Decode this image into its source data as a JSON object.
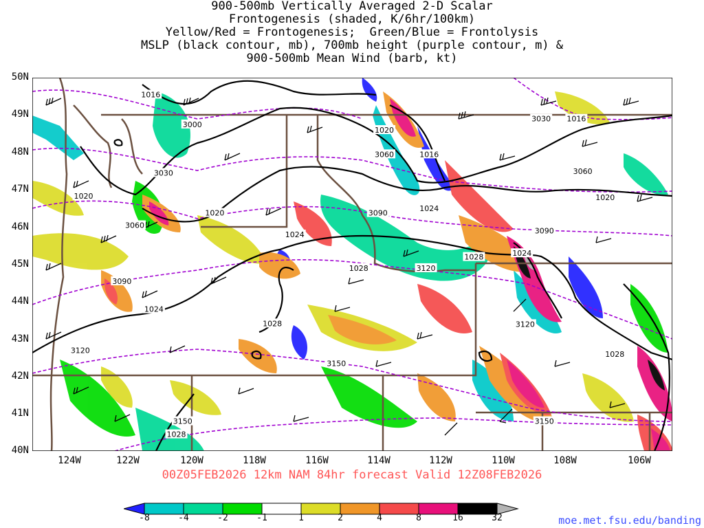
{
  "title": {
    "lines": [
      "900-500mb Vertically Averaged 2-D Scalar",
      "Frontogenesis (shaded, K/6hr/100km)",
      "Yellow/Red = Frontogenesis;  Green/Blue = Frontolysis",
      "MSLP (black contour, mb), 700mb height (purple contour, m) &",
      "900-500mb Mean Wind (barb, kt)"
    ]
  },
  "map": {
    "lat_labels": [
      "50N",
      "49N",
      "48N",
      "47N",
      "46N",
      "45N",
      "44N",
      "43N",
      "42N",
      "41N",
      "40N"
    ],
    "lon_labels": [
      "124W",
      "122W",
      "120W",
      "118W",
      "116W",
      "114W",
      "112W",
      "110W",
      "108W",
      "106W"
    ],
    "mslp_labels": [
      {
        "text": "1016",
        "lat": 49.55,
        "lon": -121.3
      },
      {
        "text": "1020",
        "lat": 48.6,
        "lon": -114.0
      },
      {
        "text": "1016",
        "lat": 47.95,
        "lon": -112.6
      },
      {
        "text": "1020",
        "lat": 46.83,
        "lon": -123.4
      },
      {
        "text": "1020",
        "lat": 46.38,
        "lon": -119.3
      },
      {
        "text": "1024",
        "lat": 46.5,
        "lon": -112.6
      },
      {
        "text": "1020",
        "lat": 46.8,
        "lon": -107.1
      },
      {
        "text": "1024",
        "lat": 45.8,
        "lon": -116.8
      },
      {
        "text": "1028",
        "lat": 45.2,
        "lon": -111.2
      },
      {
        "text": "1024",
        "lat": 45.3,
        "lon": -109.7
      },
      {
        "text": "1028",
        "lat": 44.9,
        "lon": -114.8
      },
      {
        "text": "1024",
        "lat": 43.8,
        "lon": -121.2
      },
      {
        "text": "1028",
        "lat": 43.42,
        "lon": -117.5
      },
      {
        "text": "1028",
        "lat": 42.6,
        "lon": -106.8
      },
      {
        "text": "1028",
        "lat": 40.45,
        "lon": -120.5
      },
      {
        "text": "1016",
        "lat": 48.9,
        "lon": -108.0
      }
    ],
    "height_labels": [
      {
        "text": "3000",
        "lat": 48.75,
        "lon": -120.0
      },
      {
        "text": "3030",
        "lat": 47.45,
        "lon": -120.9
      },
      {
        "text": "3060",
        "lat": 46.05,
        "lon": -121.8
      },
      {
        "text": "3060",
        "lat": 47.95,
        "lon": -114.0
      },
      {
        "text": "3090",
        "lat": 46.38,
        "lon": -114.2
      },
      {
        "text": "3030",
        "lat": 48.9,
        "lon": -109.1
      },
      {
        "text": "3060",
        "lat": 47.5,
        "lon": -107.8
      },
      {
        "text": "3090",
        "lat": 45.9,
        "lon": -109.0
      },
      {
        "text": "3090",
        "lat": 44.55,
        "lon": -122.2
      },
      {
        "text": "3120",
        "lat": 44.9,
        "lon": -112.7
      },
      {
        "text": "3120",
        "lat": 43.4,
        "lon": -109.6
      },
      {
        "text": "3120",
        "lat": 42.7,
        "lon": -123.5
      },
      {
        "text": "3150",
        "lat": 42.35,
        "lon": -115.5
      },
      {
        "text": "3150",
        "lat": 40.8,
        "lon": -120.3
      },
      {
        "text": "3150",
        "lat": 40.8,
        "lon": -109.0
      }
    ]
  },
  "valid_line": "00Z05FEB2026 12km NAM 84hr forecast Valid 12Z08FEB2026",
  "colorbar": {
    "labels": [
      "-8",
      "-4",
      "-2",
      "-1",
      "1",
      "2",
      "4",
      "8",
      "16",
      "32"
    ],
    "colors": [
      "#2020ff",
      "#00c8c8",
      "#00d896",
      "#00dc00",
      "#ffffff",
      "#dcdc28",
      "#f09628",
      "#f54a4a",
      "#e8107a",
      "#000000",
      "#b4b4b4"
    ]
  },
  "credit": "moe.met.fsu.edu/banding"
}
